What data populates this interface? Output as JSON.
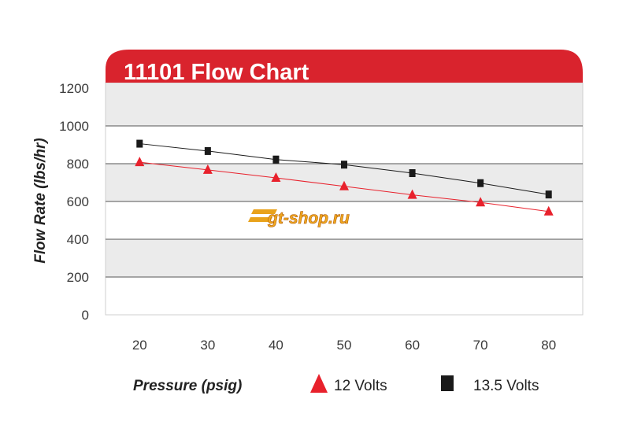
{
  "chart_data": {
    "type": "line",
    "title": "11101 Flow Chart",
    "xlabel": "Pressure (psig)",
    "ylabel": "Flow Rate (lbs/hr)",
    "x": [
      20,
      30,
      40,
      50,
      60,
      70,
      80
    ],
    "x_ticks": [
      "20",
      "30",
      "40",
      "50",
      "60",
      "70",
      "80"
    ],
    "y_ticks": [
      "0",
      "200",
      "400",
      "600",
      "800",
      "1000",
      "1200"
    ],
    "xlim": [
      15,
      85
    ],
    "ylim": [
      0,
      1200
    ],
    "grid": true,
    "legend_position": "bottom",
    "series": [
      {
        "name": "12 Volts",
        "marker": "triangle",
        "color": "#e8212c",
        "values": [
          808,
          767,
          725,
          680,
          635,
          595,
          547
        ]
      },
      {
        "name": "13.5 Volts",
        "marker": "square",
        "color": "#1a1a1a",
        "values": [
          906,
          867,
          822,
          795,
          750,
          697,
          637
        ]
      }
    ]
  },
  "colors": {
    "title_bar": "#d9232d",
    "band_shaded": "#ebebeb",
    "band_plain": "#ffffff",
    "grid": "#555555"
  },
  "watermark": {
    "text": "gt-shop.ru"
  }
}
